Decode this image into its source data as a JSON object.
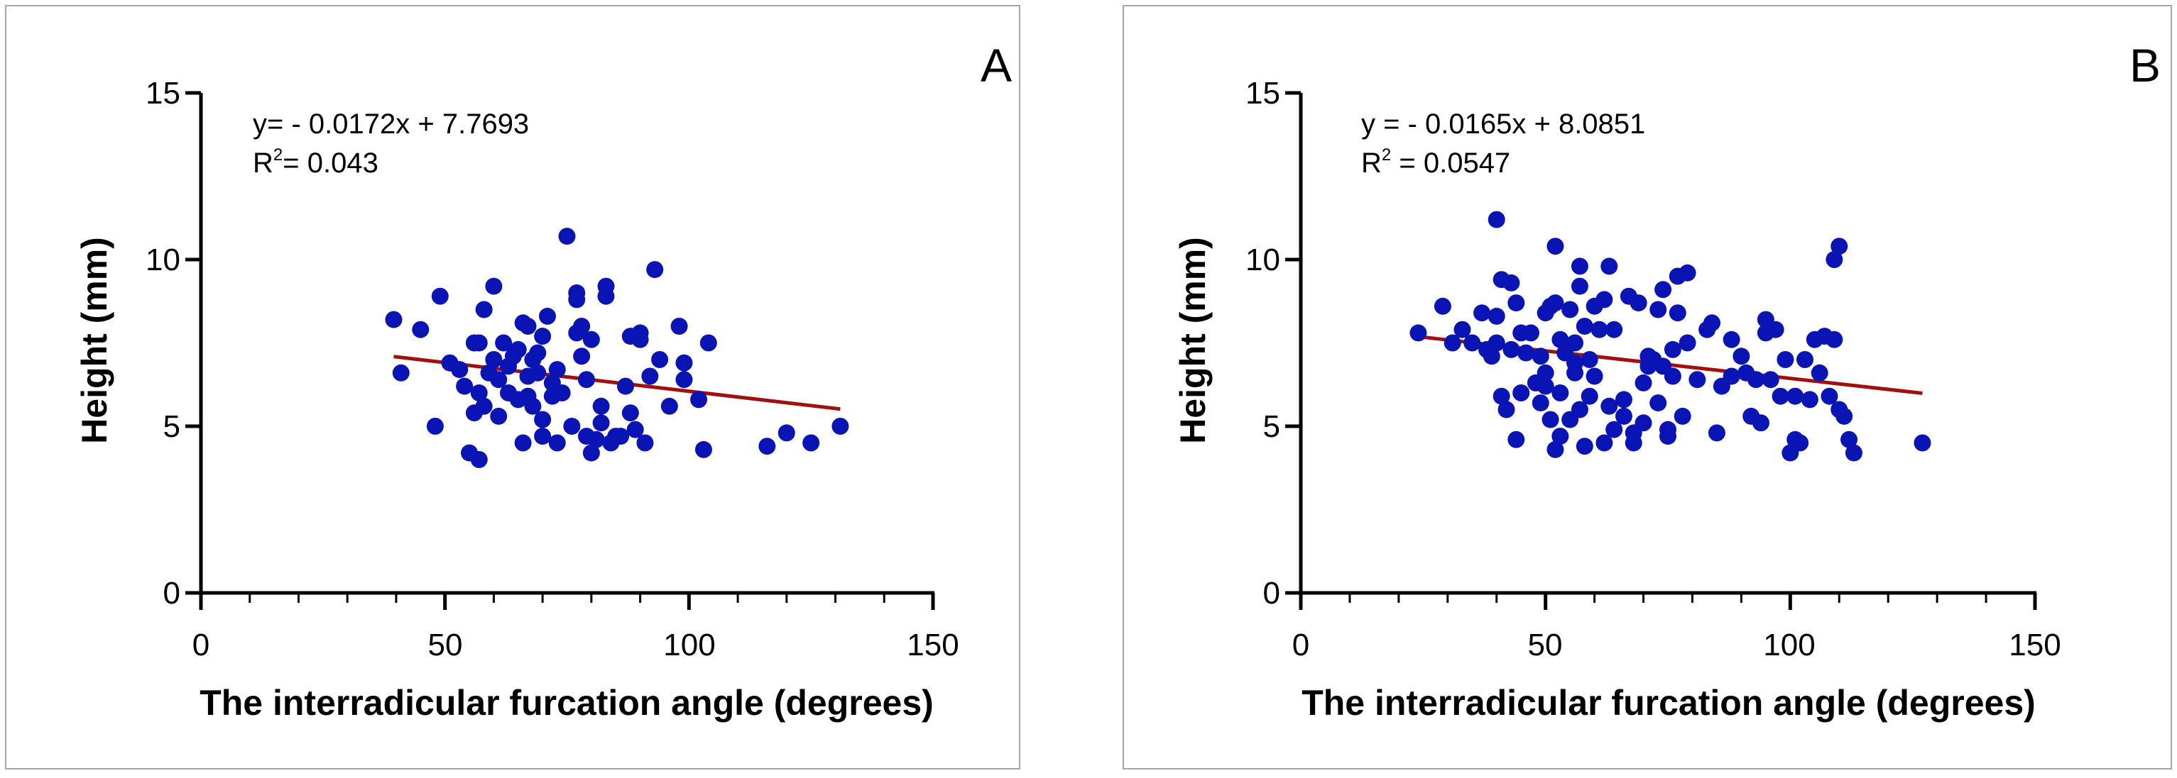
{
  "colors": {
    "points": "#0a14b4",
    "regression_line": "#a01010",
    "axes": "#000000",
    "frame": "#a6a6a6"
  },
  "chart_data": [
    {
      "type": "scatter",
      "panel_label": "A",
      "title": "",
      "xlabel": "The interradicular furcation angle (degrees)",
      "ylabel": "Height (mm)",
      "xlim": [
        0,
        150
      ],
      "ylim": [
        0,
        15
      ],
      "xticks": [
        0,
        50,
        100,
        150
      ],
      "yticks": [
        0,
        5,
        10,
        15
      ],
      "xtick_labels": [
        "0",
        "50",
        "100",
        "150"
      ],
      "ytick_labels": [
        "0",
        "5",
        "10",
        "15"
      ],
      "grid": false,
      "equation": {
        "line1": "y= - 0.0172x + 7.7693",
        "r2_base": "R",
        "r2_sup": "2",
        "r2_rest": "= 0.043"
      },
      "regression": {
        "slope": -0.0172,
        "intercept": 7.7693,
        "x_range": [
          39.5,
          131
        ]
      },
      "points": [
        [
          39.5,
          8.2
        ],
        [
          41,
          6.6
        ],
        [
          45,
          7.9
        ],
        [
          48,
          5.0
        ],
        [
          49,
          8.9
        ],
        [
          51,
          6.9
        ],
        [
          53,
          6.7
        ],
        [
          54,
          6.2
        ],
        [
          55,
          4.2
        ],
        [
          56,
          5.4
        ],
        [
          56,
          7.5
        ],
        [
          57,
          4.0
        ],
        [
          57,
          6.0
        ],
        [
          57,
          7.5
        ],
        [
          58,
          8.5
        ],
        [
          58,
          5.6
        ],
        [
          59,
          6.6
        ],
        [
          60,
          9.2
        ],
        [
          60,
          7.0
        ],
        [
          61,
          5.3
        ],
        [
          61,
          6.4
        ],
        [
          62,
          7.5
        ],
        [
          63,
          6.8
        ],
        [
          63,
          6.0
        ],
        [
          64,
          7.1
        ],
        [
          65,
          5.8
        ],
        [
          65,
          7.3
        ],
        [
          66,
          4.5
        ],
        [
          66,
          8.1
        ],
        [
          67,
          8.0
        ],
        [
          67,
          6.5
        ],
        [
          67,
          5.9
        ],
        [
          68,
          7.0
        ],
        [
          68,
          5.6
        ],
        [
          69,
          7.2
        ],
        [
          69,
          6.6
        ],
        [
          70,
          7.7
        ],
        [
          70,
          5.2
        ],
        [
          70,
          4.7
        ],
        [
          71,
          8.3
        ],
        [
          72,
          6.3
        ],
        [
          72,
          5.9
        ],
        [
          73,
          4.5
        ],
        [
          73,
          6.7
        ],
        [
          74,
          6.0
        ],
        [
          75,
          10.7
        ],
        [
          76,
          5.0
        ],
        [
          77,
          9.0
        ],
        [
          77,
          8.8
        ],
        [
          77,
          7.8
        ],
        [
          78,
          8.0
        ],
        [
          78,
          7.1
        ],
        [
          79,
          4.7
        ],
        [
          79,
          6.4
        ],
        [
          80,
          7.6
        ],
        [
          80,
          4.2
        ],
        [
          81,
          4.6
        ],
        [
          82,
          5.6
        ],
        [
          82,
          5.1
        ],
        [
          83,
          9.2
        ],
        [
          83,
          8.9
        ],
        [
          84,
          4.5
        ],
        [
          85,
          4.7
        ],
        [
          86,
          4.7
        ],
        [
          87,
          6.2
        ],
        [
          88,
          7.7
        ],
        [
          88,
          5.4
        ],
        [
          89,
          4.9
        ],
        [
          90,
          7.8
        ],
        [
          90,
          7.6
        ],
        [
          91,
          4.5
        ],
        [
          92,
          6.5
        ],
        [
          93,
          9.7
        ],
        [
          94,
          7.0
        ],
        [
          96,
          5.6
        ],
        [
          98,
          8.0
        ],
        [
          99,
          6.9
        ],
        [
          99,
          6.4
        ],
        [
          102,
          5.8
        ],
        [
          103,
          4.3
        ],
        [
          104,
          7.5
        ],
        [
          116,
          4.4
        ],
        [
          120,
          4.8
        ],
        [
          125,
          4.5
        ],
        [
          131,
          5.0
        ]
      ]
    },
    {
      "type": "scatter",
      "panel_label": "B",
      "title": "",
      "xlabel": "The interradicular furcation angle (degrees)",
      "ylabel": "Height (mm)",
      "xlim": [
        0,
        150
      ],
      "ylim": [
        0,
        15
      ],
      "xticks": [
        0,
        50,
        100,
        150
      ],
      "yticks": [
        0,
        5,
        10,
        15
      ],
      "xtick_labels": [
        "0",
        "50",
        "100",
        "150"
      ],
      "ytick_labels": [
        "0",
        "5",
        "10",
        "15"
      ],
      "grid": false,
      "equation": {
        "line1": "y = - 0.0165x + 8.0851",
        "r2_base": "R",
        "r2_sup": "2",
        "r2_rest": " = 0.0547"
      },
      "regression": {
        "slope": -0.0165,
        "intercept": 8.0851,
        "x_range": [
          24,
          127
        ]
      },
      "points": [
        [
          24,
          7.8
        ],
        [
          29,
          8.6
        ],
        [
          31,
          7.5
        ],
        [
          33,
          7.9
        ],
        [
          35,
          7.5
        ],
        [
          37,
          8.4
        ],
        [
          38,
          7.3
        ],
        [
          39,
          7.1
        ],
        [
          40,
          11.2
        ],
        [
          40,
          8.3
        ],
        [
          40,
          7.5
        ],
        [
          41,
          9.4
        ],
        [
          41,
          5.9
        ],
        [
          42,
          5.5
        ],
        [
          43,
          9.3
        ],
        [
          43,
          7.3
        ],
        [
          44,
          4.6
        ],
        [
          44,
          8.7
        ],
        [
          45,
          6.0
        ],
        [
          45,
          7.8
        ],
        [
          46,
          7.2
        ],
        [
          47,
          7.8
        ],
        [
          48,
          6.3
        ],
        [
          49,
          7.1
        ],
        [
          49,
          5.7
        ],
        [
          50,
          8.4
        ],
        [
          50,
          6.6
        ],
        [
          50,
          6.2
        ],
        [
          51,
          8.6
        ],
        [
          51,
          5.2
        ],
        [
          52,
          8.7
        ],
        [
          52,
          10.4
        ],
        [
          52,
          4.3
        ],
        [
          53,
          7.6
        ],
        [
          53,
          6.0
        ],
        [
          53,
          4.7
        ],
        [
          54,
          7.2
        ],
        [
          55,
          8.5
        ],
        [
          55,
          5.2
        ],
        [
          56,
          6.6
        ],
        [
          56,
          7.5
        ],
        [
          56,
          6.9
        ],
        [
          57,
          9.8
        ],
        [
          57,
          9.2
        ],
        [
          57,
          5.5
        ],
        [
          58,
          8.0
        ],
        [
          58,
          4.4
        ],
        [
          59,
          7.0
        ],
        [
          59,
          5.9
        ],
        [
          60,
          8.6
        ],
        [
          60,
          6.5
        ],
        [
          61,
          7.9
        ],
        [
          62,
          8.8
        ],
        [
          62,
          4.5
        ],
        [
          63,
          9.8
        ],
        [
          63,
          5.6
        ],
        [
          64,
          7.9
        ],
        [
          64,
          4.9
        ],
        [
          66,
          5.8
        ],
        [
          66,
          5.3
        ],
        [
          67,
          8.9
        ],
        [
          68,
          4.8
        ],
        [
          68,
          4.5
        ],
        [
          69,
          8.7
        ],
        [
          70,
          6.3
        ],
        [
          70,
          5.1
        ],
        [
          71,
          7.1
        ],
        [
          71,
          6.8
        ],
        [
          72,
          7.0
        ],
        [
          73,
          8.5
        ],
        [
          73,
          5.7
        ],
        [
          74,
          6.8
        ],
        [
          74,
          9.1
        ],
        [
          75,
          4.9
        ],
        [
          75,
          4.7
        ],
        [
          76,
          6.5
        ],
        [
          76,
          7.3
        ],
        [
          77,
          8.4
        ],
        [
          77,
          9.5
        ],
        [
          78,
          5.3
        ],
        [
          79,
          7.5
        ],
        [
          79,
          9.6
        ],
        [
          81,
          6.4
        ],
        [
          83,
          7.9
        ],
        [
          84,
          8.1
        ],
        [
          85,
          4.8
        ],
        [
          86,
          6.2
        ],
        [
          88,
          6.5
        ],
        [
          88,
          7.6
        ],
        [
          90,
          7.1
        ],
        [
          91,
          6.6
        ],
        [
          92,
          5.3
        ],
        [
          93,
          6.4
        ],
        [
          94,
          5.1
        ],
        [
          95,
          7.8
        ],
        [
          95,
          8.2
        ],
        [
          96,
          6.4
        ],
        [
          97,
          7.9
        ],
        [
          98,
          5.9
        ],
        [
          99,
          7.0
        ],
        [
          100,
          4.2
        ],
        [
          101,
          5.9
        ],
        [
          101,
          4.6
        ],
        [
          102,
          4.5
        ],
        [
          103,
          7.0
        ],
        [
          104,
          5.8
        ],
        [
          105,
          7.6
        ],
        [
          106,
          6.6
        ],
        [
          107,
          7.7
        ],
        [
          108,
          5.9
        ],
        [
          109,
          10.0
        ],
        [
          109,
          7.6
        ],
        [
          110,
          10.4
        ],
        [
          110,
          5.5
        ],
        [
          111,
          5.3
        ],
        [
          112,
          4.6
        ],
        [
          113,
          4.2
        ],
        [
          127,
          4.5
        ]
      ]
    }
  ]
}
